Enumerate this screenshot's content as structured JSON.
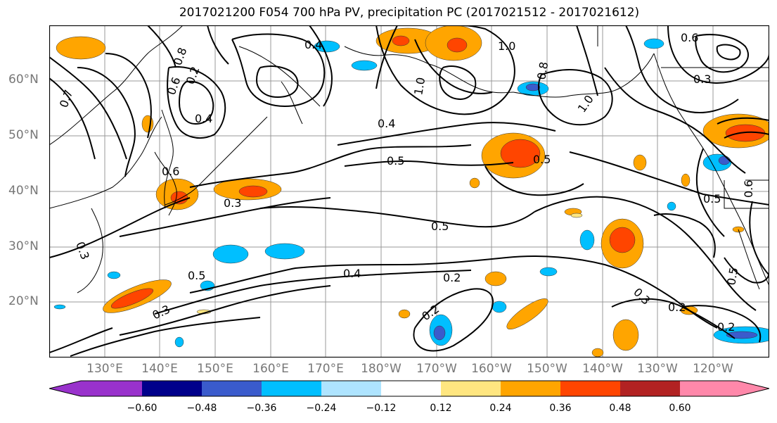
{
  "title": "2017021200 F054 700 hPa PV, precipitation PC (2017021512 - 2017021612)",
  "lat_labels": [
    "60°N",
    "50°N",
    "40°N",
    "30°N",
    "20°N"
  ],
  "lon_labels": [
    "130°E",
    "140°E",
    "150°E",
    "160°E",
    "170°E",
    "180°W",
    "170°W",
    "160°W",
    "150°W",
    "140°W",
    "130°W",
    "120°W"
  ],
  "colorbar": {
    "ticks": [
      "−0.60",
      "−0.48",
      "−0.36",
      "−0.24",
      "−0.12",
      "0.12",
      "0.24",
      "0.36",
      "0.48",
      "0.60"
    ],
    "colors": [
      "#9932cc",
      "#00008b",
      "#3a5bcc",
      "#00bfff",
      "#aee4ff",
      "#ffffff",
      "#ffe680",
      "#ffa500",
      "#ff4500",
      "#b22222",
      "#ff88aa"
    ]
  },
  "contour_labels": [
    "0.4",
    "1.0",
    "0.6",
    "0.3",
    "0.8",
    "0.6",
    "0.2",
    "0.4",
    "0.5",
    "0.5",
    "0.5",
    "0.6",
    "0.3",
    "0.5",
    "0.4",
    "0.2",
    "0.2",
    "0.3",
    "0.2",
    "0.2",
    "0.3",
    "0.5",
    "0.6",
    "0.5",
    "0.3",
    "1.0",
    "0.8",
    "0.4",
    "1.0",
    "0.7"
  ]
}
